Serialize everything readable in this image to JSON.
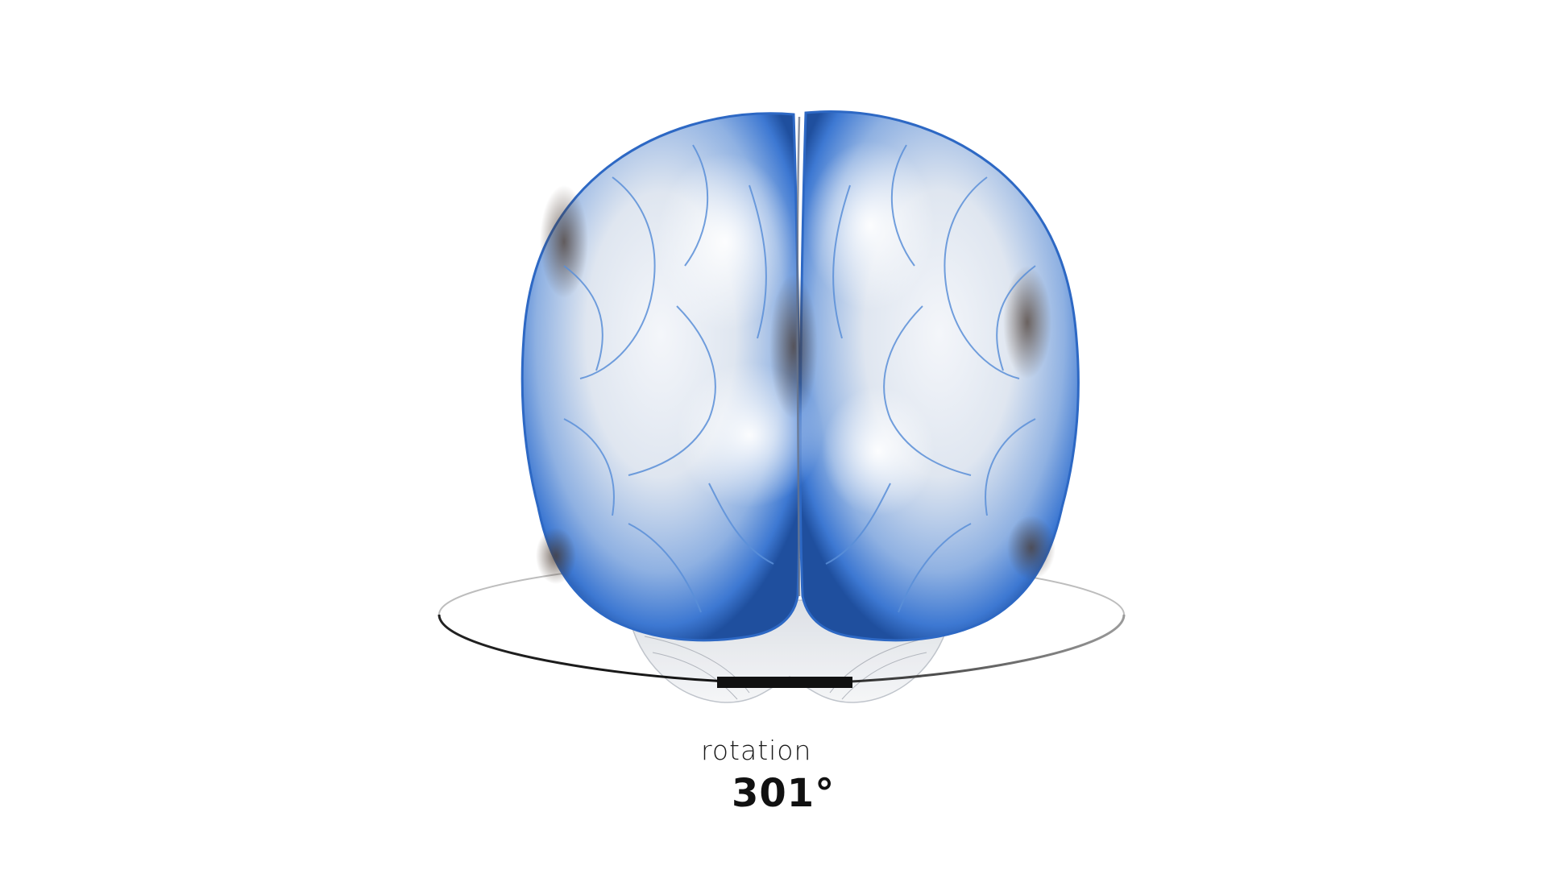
{
  "viewer": {
    "model": "brain-3d-model",
    "rotation_label": "rotation",
    "rotation_value": "301°",
    "rotation_degrees": 301
  },
  "colors": {
    "background": "#ffffff",
    "accent_blue": "#2f6fd0",
    "ring": "#111111"
  }
}
